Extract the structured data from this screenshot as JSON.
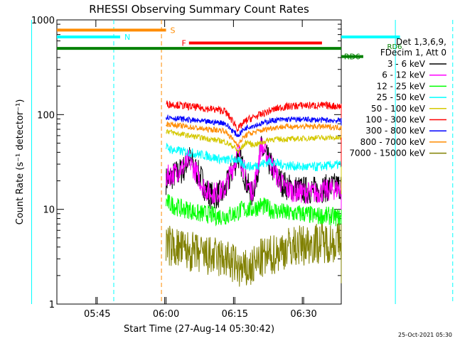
{
  "chart_data": {
    "type": "line",
    "title": "RHESSI Observing Summary Count Rates",
    "xlabel": "Start Time (27-Aug-14 05:30:42)",
    "ylabel": "Count Rate (s⁻¹ detector⁻¹)",
    "yscale": "log",
    "ylim": [
      1,
      1000
    ],
    "xlim_minutes": [
      5.5,
      67.5
    ],
    "y_ticks": [
      "1",
      "10",
      "100",
      "1000"
    ],
    "x_ticks": [
      {
        "label": "05:45",
        "t": 14.3
      },
      {
        "label": "06:00",
        "t": 29.3
      },
      {
        "label": "06:15",
        "t": 44.3
      },
      {
        "label": "06:30",
        "t": 59.3
      },
      {
        "label": "06:45",
        "t": 74.3
      },
      {
        "label": "07:00",
        "t": 89.3
      }
    ],
    "legend": {
      "header1": "Det 1,3,6,9,",
      "header2": "FDecim 1, Att 0",
      "placement": "right",
      "entries": [
        {
          "label": "3 - 6 keV",
          "color": "#000000"
        },
        {
          "label": "6 - 12 keV",
          "color": "#ff00ff"
        },
        {
          "label": "12 - 25 keV",
          "color": "#00ff00"
        },
        {
          "label": "25 - 50 keV",
          "color": "#00ffff"
        },
        {
          "label": "50 - 100 keV",
          "color": "#d4c800"
        },
        {
          "label": "100 - 300 keV",
          "color": "#ff0000"
        },
        {
          "label": "300 - 800 keV",
          "color": "#0000ff"
        },
        {
          "label": "800 - 7000 keV",
          "color": "#ff8c00"
        },
        {
          "label": "7000 - 15000 keV",
          "color": "#808000"
        }
      ]
    },
    "flag_bars": [
      {
        "label": "S",
        "color": "#ff8c00",
        "t_start": 0,
        "t_end": 29.3,
        "y": 780,
        "label_pos": "end"
      },
      {
        "label": "N",
        "color": "#00ffff",
        "t_start": 0,
        "t_end": 19.3,
        "y": 660,
        "label_pos": "end"
      },
      {
        "label": "N",
        "color": "#00ffff",
        "t_start": 80.3,
        "t_end": 92.3,
        "y": 660,
        "label_pos": "none"
      },
      {
        "label": "F",
        "color": "#ff0000",
        "t_start": 34.3,
        "t_end": 63.3,
        "y": 570,
        "label_pos": "start"
      },
      {
        "label": "RD6",
        "color": "#008000",
        "t_start": 0,
        "t_end": 92.3,
        "y": 500,
        "label_pos": "none"
      },
      {
        "label": "RD6",
        "color": "#008000",
        "t_start": 72.3,
        "t_end": 76.3,
        "y": 410,
        "label_pos": "start"
      }
    ],
    "flag_labels_extra": [
      {
        "label": "RD6",
        "t": 77.5,
        "y": 500
      }
    ],
    "vlines": [
      {
        "t": 0.0,
        "color": "#00ffff",
        "style": "solid"
      },
      {
        "t": 17.9,
        "color": "#00ffff",
        "style": "dashed"
      },
      {
        "t": 28.3,
        "color": "#ff8c00",
        "style": "dashed"
      },
      {
        "t": 79.3,
        "color": "#00ffff",
        "style": "solid"
      },
      {
        "t": 91.8,
        "color": "#00ffff",
        "style": "dashed"
      }
    ],
    "series": [
      {
        "name": "3 - 6 keV",
        "color": "#000000",
        "noise": 0.15,
        "t": [
          29.3,
          31,
          33,
          34.3,
          36,
          37,
          38,
          39,
          40,
          42,
          44.3,
          45,
          46,
          47,
          48,
          49,
          50,
          52,
          54,
          56,
          59.3,
          62,
          65,
          68,
          70,
          72,
          73.5,
          75,
          76,
          77,
          78,
          79,
          80.5,
          81,
          82,
          83
        ],
        "y": [
          20,
          23,
          26,
          35,
          25,
          21,
          16,
          14,
          14,
          15,
          30,
          38,
          28,
          18,
          14,
          22,
          44,
          30,
          20,
          17,
          16,
          16,
          17,
          18,
          17,
          16,
          15,
          14,
          13,
          11,
          3,
          2,
          1.5,
          1.4,
          1.2,
          1.1
        ]
      },
      {
        "name": "6 - 12 keV",
        "color": "#ff00ff",
        "noise": 0.12,
        "t": [
          29.3,
          31,
          33,
          34.3,
          36,
          37,
          38,
          39,
          40,
          42,
          44.3,
          45,
          46,
          47,
          48,
          49,
          50,
          52,
          54,
          56,
          59.3,
          62,
          65,
          68,
          70,
          72,
          73.5,
          75,
          76,
          77
        ],
        "y": [
          22,
          24,
          28,
          33,
          24,
          19,
          16,
          15,
          15,
          16,
          32,
          42,
          30,
          19,
          15,
          23,
          48,
          32,
          20,
          16,
          15,
          15,
          16,
          17,
          16,
          14,
          14,
          13,
          12,
          11
        ]
      },
      {
        "name": "12 - 25 keV",
        "color": "#00ff00",
        "noise": 0.1,
        "t": [
          29.3,
          31,
          33,
          34.3,
          36,
          38,
          40,
          42,
          44.3,
          46,
          48,
          50,
          52,
          54,
          56,
          59.3,
          62,
          65,
          68,
          70,
          72,
          74,
          75,
          76,
          77,
          78,
          79,
          80.3,
          81
        ],
        "y": [
          12,
          11,
          10,
          10,
          9,
          9,
          8.5,
          8.5,
          9,
          10,
          10,
          11,
          10,
          9.5,
          9,
          9,
          8.5,
          8.5,
          8,
          8,
          8,
          7.5,
          7,
          7,
          6.5,
          4,
          2,
          2.5,
          2
        ]
      },
      {
        "name": "25 - 50 keV",
        "color": "#00ffff",
        "noise": 0.05,
        "t": [
          29.3,
          31,
          34.3,
          38,
          42,
          44.3,
          46,
          48,
          50,
          52,
          54,
          56,
          59.3,
          62,
          65,
          68,
          70,
          72,
          74,
          75,
          76,
          77,
          78,
          79,
          80,
          81
        ],
        "y": [
          45,
          42,
          40,
          37,
          33,
          34,
          30,
          28,
          30,
          32,
          30,
          29,
          28,
          28,
          29,
          30,
          29,
          29,
          28,
          28,
          27,
          27,
          20,
          21,
          27,
          26
        ]
      },
      {
        "name": "50 - 100 keV",
        "color": "#d4c800",
        "noise": 0.03,
        "t": [
          29.3,
          31,
          34.3,
          38,
          42,
          44.3,
          45,
          46,
          47,
          48,
          50,
          52,
          54,
          56,
          59.3,
          62,
          65,
          68,
          70,
          72,
          74,
          75,
          76,
          77,
          78,
          79,
          80,
          81
        ],
        "y": [
          68,
          64,
          60,
          56,
          52,
          45,
          40,
          46,
          52,
          48,
          50,
          55,
          55,
          55,
          56,
          57,
          57,
          56,
          55,
          54,
          55,
          54,
          55,
          55,
          15,
          16,
          55,
          54
        ]
      },
      {
        "name": "100 - 300 keV",
        "color": "#ff0000",
        "noise": 0.04,
        "t": [
          29.3,
          31,
          34.3,
          38,
          42,
          44.3,
          45,
          46,
          47,
          48,
          50,
          52,
          54,
          56,
          59.3,
          62,
          65,
          68,
          70,
          72,
          74,
          75,
          76,
          77,
          78,
          79,
          80,
          81
        ],
        "y": [
          130,
          128,
          122,
          116,
          110,
          80,
          70,
          80,
          88,
          92,
          100,
          110,
          118,
          122,
          125,
          125,
          124,
          122,
          120,
          118,
          115,
          113,
          110,
          110,
          30,
          30,
          95,
          95
        ]
      },
      {
        "name": "300 - 800 keV",
        "color": "#0000ff",
        "noise": 0.03,
        "t": [
          29.3,
          31,
          34.3,
          38,
          42,
          44.3,
          45,
          46,
          47,
          48,
          50,
          52,
          54,
          56,
          59.3,
          62,
          65,
          68,
          70,
          72,
          74,
          75,
          76,
          77,
          78,
          79,
          80,
          81
        ],
        "y": [
          95,
          92,
          88,
          84,
          82,
          64,
          60,
          68,
          74,
          76,
          80,
          86,
          88,
          89,
          89,
          88,
          87,
          86,
          84,
          82,
          82,
          80,
          78,
          66,
          65,
          65,
          70,
          68
        ]
      },
      {
        "name": "800 - 7000 keV",
        "color": "#ff8c00",
        "noise": 0.03,
        "t": [
          29.3,
          31,
          34.3,
          38,
          42,
          44.3,
          45,
          46,
          47,
          48,
          50,
          52,
          54,
          56,
          59.3,
          62,
          65,
          68,
          70,
          72,
          74,
          75,
          76,
          77,
          78,
          79,
          80,
          81
        ],
        "y": [
          80,
          78,
          74,
          70,
          68,
          52,
          48,
          56,
          62,
          64,
          68,
          72,
          74,
          75,
          75,
          75,
          74,
          73,
          71,
          70,
          69,
          68,
          66,
          64,
          60,
          60,
          63,
          62
        ]
      },
      {
        "name": "7000 - 15000 keV",
        "color": "#808000",
        "noise": 0.22,
        "t": [
          29.3,
          31,
          34.3,
          38,
          42,
          44.3,
          46,
          48,
          50,
          52,
          54,
          56,
          59.3,
          62,
          65,
          68,
          70,
          72,
          74,
          75,
          76,
          77,
          78,
          79,
          80,
          81
        ],
        "y": [
          4.2,
          4,
          3.6,
          3.2,
          3,
          2.6,
          2.2,
          2.4,
          3,
          3.2,
          3.6,
          4,
          4.2,
          4.4,
          4.5,
          4.5,
          4.3,
          4.2,
          4.1,
          3.8,
          3.5,
          3.2,
          2.6,
          2.8,
          3.5,
          3.4
        ]
      }
    ]
  },
  "footer_date": "25-Oct-2021 05:30"
}
